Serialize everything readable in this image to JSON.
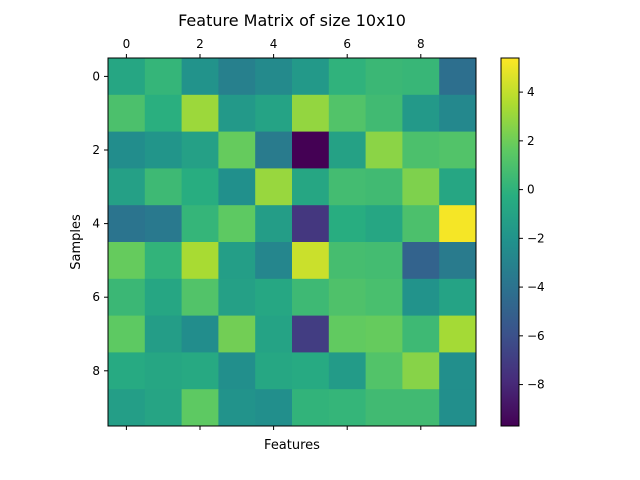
{
  "chart_data": {
    "type": "heatmap",
    "title": "Feature Matrix of size 10x10",
    "xlabel": "Features",
    "ylabel": "Samples",
    "x_ticks": [
      0,
      2,
      4,
      6,
      8
    ],
    "y_ticks": [
      0,
      2,
      4,
      6,
      8
    ],
    "x_tick_position": "top",
    "colormap": "viridis",
    "vmin": -9.7,
    "vmax": 5.4,
    "colorbar_ticks": [
      4,
      2,
      0,
      -2,
      -4,
      -6,
      -8
    ],
    "values": [
      [
        -0.8,
        0.2,
        -2.0,
        -3.2,
        -2.6,
        -1.6,
        0.0,
        0.4,
        0.3,
        -4.2
      ],
      [
        1.0,
        -0.2,
        3.1,
        -1.6,
        -1.0,
        2.9,
        1.2,
        0.6,
        -1.6,
        -2.7
      ],
      [
        -2.4,
        -1.9,
        -1.2,
        1.8,
        -3.5,
        -9.7,
        -1.1,
        2.7,
        1.0,
        1.2
      ],
      [
        -1.2,
        0.5,
        -0.3,
        -2.2,
        3.0,
        -0.8,
        0.7,
        0.6,
        2.4,
        -0.8
      ],
      [
        -3.9,
        -3.6,
        0.2,
        1.6,
        -1.4,
        -7.3,
        -0.3,
        -0.8,
        1.0,
        5.2
      ],
      [
        1.8,
        0.1,
        3.4,
        -1.3,
        -2.8,
        4.2,
        0.8,
        0.7,
        -4.9,
        -3.5
      ],
      [
        0.4,
        -0.8,
        1.2,
        -1.2,
        -0.7,
        0.5,
        1.1,
        0.9,
        -2.0,
        -1.0
      ],
      [
        1.6,
        -1.4,
        -2.4,
        2.1,
        -1.0,
        -7.0,
        1.7,
        1.8,
        0.5,
        3.3
      ],
      [
        -0.5,
        -0.8,
        -0.6,
        -2.3,
        -0.7,
        -0.5,
        -1.5,
        1.2,
        2.6,
        -2.3
      ],
      [
        -1.3,
        -0.9,
        1.6,
        -2.0,
        -2.3,
        0.1,
        0.2,
        0.6,
        0.6,
        -2.3
      ]
    ]
  }
}
